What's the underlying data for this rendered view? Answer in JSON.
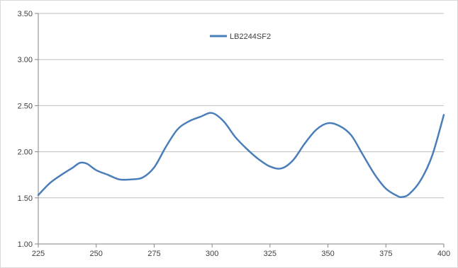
{
  "chart_data": {
    "type": "line",
    "title": "",
    "xlabel": "",
    "ylabel": "",
    "xlim": [
      225,
      400
    ],
    "ylim": [
      1.0,
      3.5
    ],
    "x_ticks": [
      225,
      250,
      275,
      300,
      325,
      350,
      375,
      400
    ],
    "y_ticks": [
      1.0,
      1.5,
      2.0,
      2.5,
      3.0,
      3.5
    ],
    "x_tick_labels": [
      "225",
      "250",
      "275",
      "300",
      "325",
      "350",
      "375",
      "400"
    ],
    "y_tick_labels": [
      "1.00",
      "1.50",
      "2.00",
      "2.50",
      "3.00",
      "3.50"
    ],
    "grid": "horizontal",
    "legend_position": "top-center",
    "series": [
      {
        "name": "LB2244SF2",
        "color": "#4a7ebb",
        "x": [
          225,
          230,
          235,
          240,
          243,
          246,
          250,
          255,
          260,
          265,
          270,
          275,
          280,
          285,
          290,
          295,
          300,
          305,
          310,
          315,
          320,
          325,
          330,
          335,
          340,
          345,
          350,
          355,
          360,
          365,
          370,
          375,
          380,
          382,
          385,
          390,
          395,
          400
        ],
        "y": [
          1.53,
          1.66,
          1.75,
          1.83,
          1.88,
          1.87,
          1.8,
          1.75,
          1.7,
          1.7,
          1.72,
          1.83,
          2.05,
          2.24,
          2.33,
          2.38,
          2.42,
          2.33,
          2.16,
          2.03,
          1.92,
          1.84,
          1.82,
          1.91,
          2.09,
          2.24,
          2.31,
          2.28,
          2.18,
          1.97,
          1.76,
          1.6,
          1.52,
          1.51,
          1.54,
          1.69,
          1.96,
          2.4
        ]
      }
    ]
  }
}
